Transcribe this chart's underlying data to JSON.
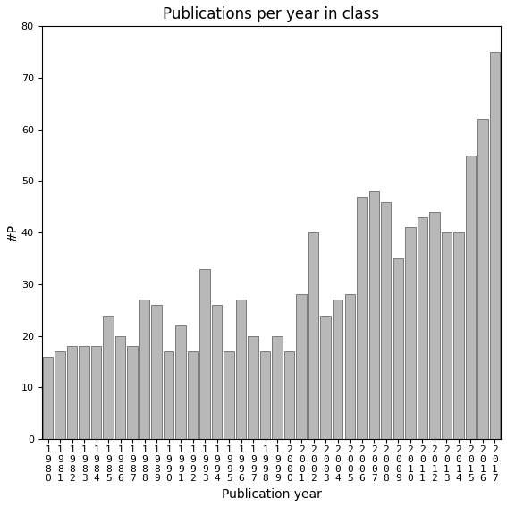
{
  "title": "Publications per year in class",
  "xlabel": "Publication year",
  "ylabel": "#P",
  "ylim": [
    0,
    80
  ],
  "yticks": [
    0,
    10,
    20,
    30,
    40,
    50,
    60,
    70,
    80
  ],
  "bar_color": "#b8b8b8",
  "bar_edge_color": "#555555",
  "background_color": "#ffffff",
  "years": [
    "1980",
    "1981",
    "1982",
    "1983",
    "1984",
    "1985",
    "1986",
    "1987",
    "1988",
    "1989",
    "1990",
    "1991",
    "1992",
    "1993",
    "1994",
    "1995",
    "1996",
    "1997",
    "1998",
    "1999",
    "2000",
    "2001",
    "2002",
    "2003",
    "2004",
    "2005",
    "2006",
    "2007",
    "2008",
    "2009",
    "2010",
    "2011",
    "2012",
    "2013",
    "2014",
    "2015",
    "2016",
    "2017"
  ],
  "values": [
    16,
    17,
    18,
    18,
    18,
    24,
    20,
    18,
    27,
    26,
    17,
    22,
    17,
    33,
    26,
    17,
    27,
    20,
    17,
    20,
    17,
    28,
    40,
    24,
    27,
    28,
    47,
    48,
    46,
    35,
    41,
    43,
    44,
    40,
    40,
    55,
    62,
    75
  ],
  "title_fontsize": 12,
  "label_fontsize": 10,
  "tick_fontsize": 8
}
